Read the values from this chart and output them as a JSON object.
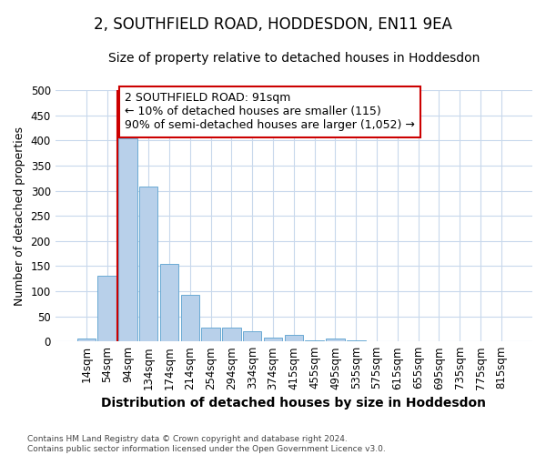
{
  "title": "2, SOUTHFIELD ROAD, HODDESDON, EN11 9EA",
  "subtitle": "Size of property relative to detached houses in Hoddesdon",
  "xlabel": "Distribution of detached houses by size in Hoddesdon",
  "ylabel": "Number of detached properties",
  "categories": [
    "14sqm",
    "54sqm",
    "94sqm",
    "134sqm",
    "174sqm",
    "214sqm",
    "254sqm",
    "294sqm",
    "334sqm",
    "374sqm",
    "415sqm",
    "455sqm",
    "495sqm",
    "535sqm",
    "575sqm",
    "615sqm",
    "655sqm",
    "695sqm",
    "735sqm",
    "775sqm",
    "815sqm"
  ],
  "values": [
    5,
    130,
    405,
    308,
    155,
    92,
    28,
    28,
    20,
    7,
    13,
    3,
    5,
    2,
    1,
    1,
    0,
    1,
    0,
    0,
    1
  ],
  "bar_color": "#b8d0ea",
  "bar_edge_color": "#6aaad4",
  "ylim": [
    0,
    500
  ],
  "yticks": [
    0,
    50,
    100,
    150,
    200,
    250,
    300,
    350,
    400,
    450,
    500
  ],
  "red_line_color": "#cc0000",
  "red_line_x": 1.5,
  "annotation_line1": "2 SOUTHFIELD ROAD: 91sqm",
  "annotation_line2": "← 10% of detached houses are smaller (115)",
  "annotation_line3": "90% of semi-detached houses are larger (1,052) →",
  "annotation_box_color": "#ffffff",
  "annotation_box_edge": "#cc0000",
  "footer_line1": "Contains HM Land Registry data © Crown copyright and database right 2024.",
  "footer_line2": "Contains public sector information licensed under the Open Government Licence v3.0.",
  "bg_color": "#ffffff",
  "grid_color": "#c8d8ec",
  "title_fontsize": 12,
  "subtitle_fontsize": 10,
  "ylabel_fontsize": 9,
  "xlabel_fontsize": 10,
  "tick_fontsize": 8.5,
  "annotation_fontsize": 9
}
